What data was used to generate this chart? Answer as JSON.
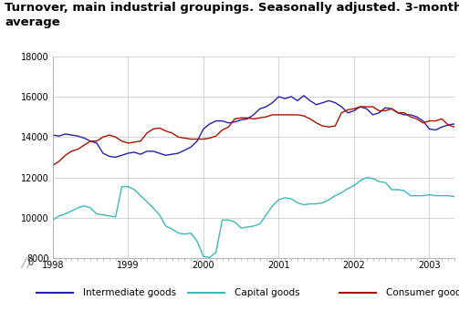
{
  "title": "Turnover, main industrial groupings. Seasonally adjusted. 3-month moving\naverage",
  "title_color": "#000000",
  "title_fontsize": 9.5,
  "background_color": "#ffffff",
  "plot_bg_color": "#ffffff",
  "grid_color": "#cccccc",
  "teal_line": "#3cb8b8",
  "blue_line": "#2222aa",
  "red_line": "#aa1100",
  "accent_color": "#5bbfbf",
  "ylim_main": [
    8000,
    18000
  ],
  "yticks": [
    8000,
    10000,
    12000,
    14000,
    16000,
    18000
  ],
  "xtick_years": [
    1998,
    1999,
    2000,
    2001,
    2002,
    2003
  ],
  "legend_labels": [
    "Intermediate goods",
    "Capital goods",
    "Consumer goods"
  ],
  "intermediate_goods": [
    14100,
    14050,
    14150,
    14100,
    14050,
    13950,
    13800,
    13700,
    13200,
    13050,
    13000,
    13100,
    13200,
    13250,
    13150,
    13300,
    13300,
    13200,
    13100,
    13150,
    13200,
    13350,
    13500,
    13800,
    14400,
    14650,
    14800,
    14800,
    14700,
    14750,
    14850,
    14900,
    15100,
    15400,
    15500,
    15700,
    16000,
    15900,
    16000,
    15800,
    16050,
    15800,
    15600,
    15700,
    15800,
    15700,
    15500,
    15200,
    15300,
    15500,
    15400,
    15100,
    15200,
    15450,
    15400,
    15200,
    15100,
    15100,
    15000,
    14800,
    14400,
    14350,
    14500,
    14600,
    14650
  ],
  "capital_goods": [
    9900,
    10100,
    10200,
    10350,
    10500,
    10600,
    10500,
    10200,
    10150,
    10100,
    10050,
    11550,
    11550,
    11400,
    11100,
    10800,
    10500,
    10150,
    9600,
    9450,
    9250,
    9200,
    9250,
    8850,
    8100,
    8050,
    8300,
    9900,
    9900,
    9800,
    9500,
    9550,
    9600,
    9700,
    10150,
    10600,
    10900,
    11000,
    10950,
    10750,
    10650,
    10700,
    10700,
    10750,
    10900,
    11100,
    11250,
    11450,
    11600,
    11850,
    12000,
    11950,
    11800,
    11750,
    11400,
    11400,
    11350,
    11100,
    11100,
    11100,
    11150,
    11100,
    11100,
    11100,
    11050
  ],
  "consumer_goods": [
    12600,
    12800,
    13100,
    13300,
    13400,
    13600,
    13800,
    13800,
    14000,
    14100,
    14000,
    13800,
    13700,
    13750,
    13800,
    14200,
    14400,
    14450,
    14300,
    14200,
    14000,
    13950,
    13900,
    13900,
    13900,
    13950,
    14050,
    14350,
    14500,
    14900,
    14950,
    14950,
    14900,
    14950,
    15000,
    15100,
    15100,
    15100,
    15100,
    15100,
    15050,
    14900,
    14700,
    14550,
    14500,
    14550,
    15200,
    15350,
    15400,
    15500,
    15500,
    15500,
    15300,
    15300,
    15400,
    15200,
    15200,
    15000,
    14900,
    14700,
    14800,
    14800,
    14900,
    14600,
    14500
  ]
}
